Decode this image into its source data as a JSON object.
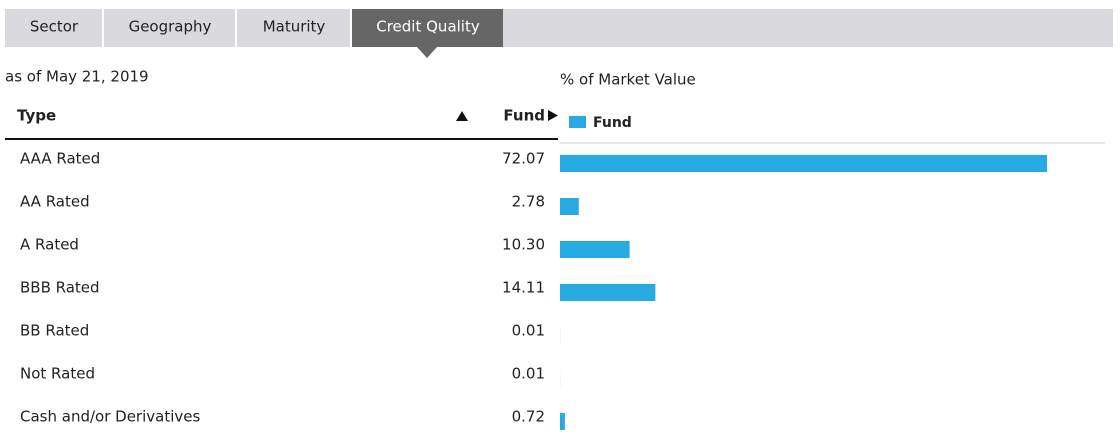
{
  "tabs": [
    "Sector",
    "Geography",
    "Maturity",
    "Credit Quality"
  ],
  "as_of": "as of May 21, 2019",
  "table": {
    "header": {
      "type": "Type",
      "fund": "Fund"
    }
  },
  "chart_data": {
    "type": "bar",
    "orientation": "horizontal",
    "title": "% of Market Value",
    "categories": [
      "AAA Rated",
      "AA Rated",
      "A Rated",
      "BBB Rated",
      "BB Rated",
      "Not Rated",
      "Cash and/or Derivatives"
    ],
    "series": [
      {
        "name": "Fund",
        "color": "#27a9e1",
        "values": [
          72.07,
          2.78,
          10.3,
          14.11,
          0.01,
          0.01,
          0.72
        ],
        "value_labels": [
          "72.07",
          "2.78",
          "10.30",
          "14.11",
          "0.01",
          "0.01",
          "0.72"
        ]
      }
    ]
  }
}
